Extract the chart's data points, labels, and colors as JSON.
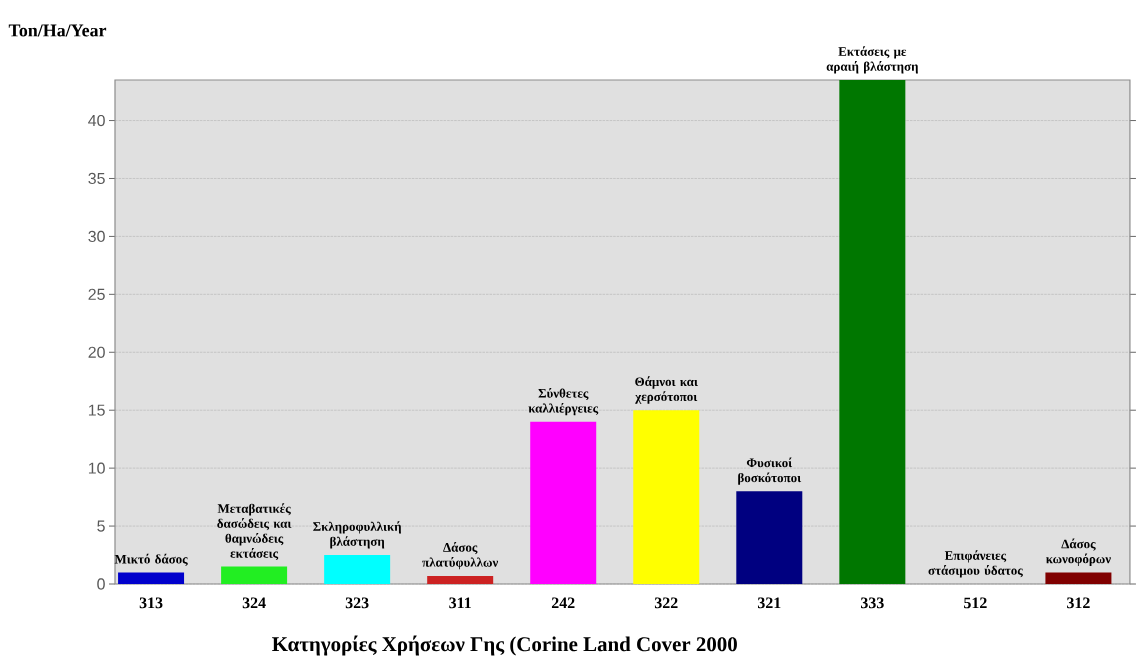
{
  "chart_data": {
    "type": "bar",
    "ylabel": "Ton/Ha/Year",
    "xlabel": "Κατηγορίες Χρήσεων Γης (Corine Land Cover 2000",
    "categories": [
      "313",
      "324",
      "323",
      "311",
      "242",
      "322",
      "321",
      "333",
      "512",
      "312"
    ],
    "values": [
      1.0,
      1.5,
      2.5,
      0.7,
      14,
      15,
      8,
      43.5,
      0,
      1.0
    ],
    "colors": [
      "#0000cc",
      "#22ee22",
      "#00ffff",
      "#cc2222",
      "#ff00ff",
      "#ffff00",
      "#000080",
      "#007700",
      null,
      "#800000"
    ],
    "ylim": [
      0,
      43.5
    ],
    "yticks": [
      0,
      5,
      10,
      15,
      20,
      25,
      30,
      35,
      40
    ],
    "grid": "y",
    "annotations": [
      {
        "text": "Μικτό δάσος",
        "x": "313",
        "y": 1.0
      },
      {
        "text": "Μεταβατικές δασώδεις και θαμνώδεις εκτάσεις",
        "x": "324",
        "y": 1.5
      },
      {
        "text": "Σκληροφυλλική βλάστηση",
        "x": "323",
        "y": 2.5
      },
      {
        "text": "Δάσος πλατύφυλλων",
        "x": "311",
        "y": 0.7
      },
      {
        "text": "Σύνθετες καλλιέργειες",
        "x": "242",
        "y": 14
      },
      {
        "text": "Θάμνοι και χερσότοποι",
        "x": "322",
        "y": 15
      },
      {
        "text": "Φυσικοί βοσκότοποι",
        "x": "321",
        "y": 8
      },
      {
        "text": "Εκτάσεις με αραιή βλάστηση",
        "x": "333",
        "y": 43.5
      },
      {
        "text": "Επιφάνειες στάσιμου ύδατος",
        "x": "512",
        "y": 0
      },
      {
        "text": "Δάσος κωνοφόρων",
        "x": "312",
        "y": 1.0
      }
    ]
  }
}
